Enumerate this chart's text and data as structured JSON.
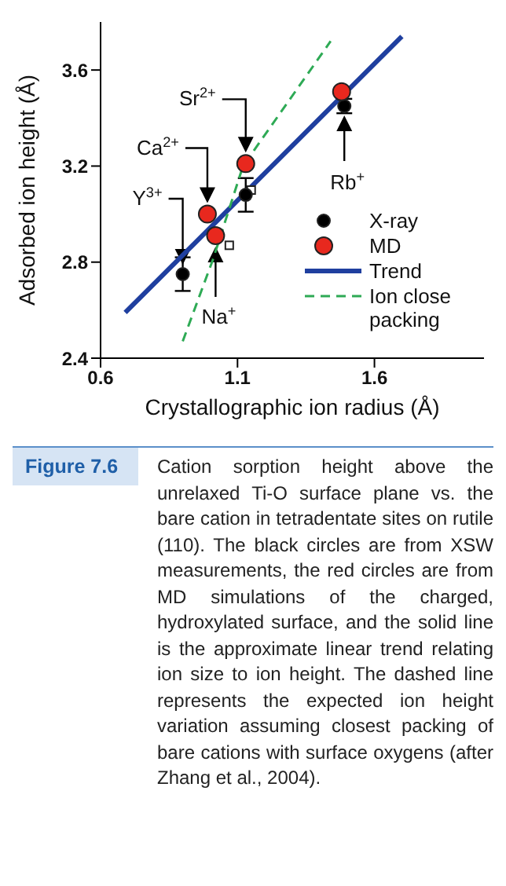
{
  "chart_data": {
    "type": "scatter",
    "xlabel": "Crystallographic ion radius (Å)",
    "ylabel": "Adsorbed ion height (Å)",
    "xlim": [
      0.6,
      2.0
    ],
    "xticks": [
      0.6,
      1.1,
      1.6
    ],
    "ylim": [
      2.4,
      3.8
    ],
    "yticks": [
      2.4,
      2.8,
      3.2,
      3.6
    ],
    "grid": false,
    "legend": "bottom right",
    "series": [
      {
        "name": "Trend",
        "type": "line",
        "color": "#1f3f9f",
        "line_style": "solid",
        "marker": "none",
        "x": [
          0.69,
          1.7
        ],
        "values": [
          2.59,
          3.74
        ]
      },
      {
        "name": "Ion close packing",
        "type": "line",
        "color": "#2eaa55",
        "line_style": "dashed",
        "marker": "none",
        "x": [
          0.9,
          1.01,
          1.12,
          1.44
        ],
        "values": [
          2.47,
          2.81,
          3.2,
          3.72
        ]
      },
      {
        "color": "#ffffff",
        "marker": "square",
        "x": [
          1.07,
          1.15
        ],
        "values": [
          2.87,
          3.1
        ]
      },
      {
        "name": "X-ray",
        "color": "#000000",
        "marker": "circle",
        "x": [
          0.9,
          1.13,
          1.49
        ],
        "values": [
          2.75,
          3.08,
          3.45
        ],
        "errors": [
          0.07,
          0.07,
          0.03
        ]
      },
      {
        "name": "MD",
        "color": "#e8281e",
        "marker": "circle",
        "x": [
          0.99,
          1.02,
          1.13,
          1.48
        ],
        "values": [
          3.0,
          2.91,
          3.21,
          3.51
        ]
      }
    ],
    "annotations": [
      "Sr$^{2+}$",
      "Ca$^{2+}$",
      "Y$^{3+}$",
      "Na$^{+}$",
      "Rb$^{+}$",
      "Figure 7.6",
      "Cation sorption height above the unrelaxed Ti-O surface plane vs. the bare cation in tetradentate sites on rutile (110). The black circles are from XSW measurements, the red circles are from MD simulations of the charged, hydroxylated surface, and the solid line is the approximate linear trend relating ion size to ion height. The dashed line represents the expected ion height variation assuming closest packing of bare cations with surface oxygens (after Zhang et al., 2004)."
    ]
  }
}
